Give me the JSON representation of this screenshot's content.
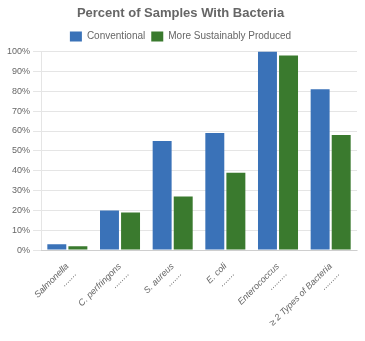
{
  "chart_data": {
    "type": "bar",
    "title": "Percent of Samples With Bacteria",
    "categories": [
      "Salmonella\n.......",
      "C. perfringons\n........",
      "S. aureus\n.......",
      "E. coli\n.......",
      "Enterococcus\n.........",
      "≥ 2 Types of Bacteria\n........."
    ],
    "series": [
      {
        "name": "Conventional",
        "color": "#3a72b8",
        "values": [
          3,
          20,
          55,
          59,
          100,
          81
        ]
      },
      {
        "name": "More Sustainably Produced",
        "color": "#3a7a2e",
        "values": [
          2,
          19,
          27,
          39,
          98,
          58
        ]
      }
    ],
    "ylim": [
      0,
      100
    ],
    "yticks": [
      {
        "value": 0,
        "label": "0%"
      },
      {
        "value": 10,
        "label": "10%"
      },
      {
        "value": 20,
        "label": "20%"
      },
      {
        "value": 30,
        "label": "30%"
      },
      {
        "value": 40,
        "label": "40%"
      },
      {
        "value": 50,
        "label": "50%"
      },
      {
        "value": 60,
        "label": "60%"
      },
      {
        "value": 70,
        "label": "70%"
      },
      {
        "value": 80,
        "label": "80%"
      },
      {
        "value": 90,
        "label": "90%"
      },
      {
        "value": 100,
        "label": "100%"
      }
    ],
    "grid": true,
    "legend": "top"
  }
}
